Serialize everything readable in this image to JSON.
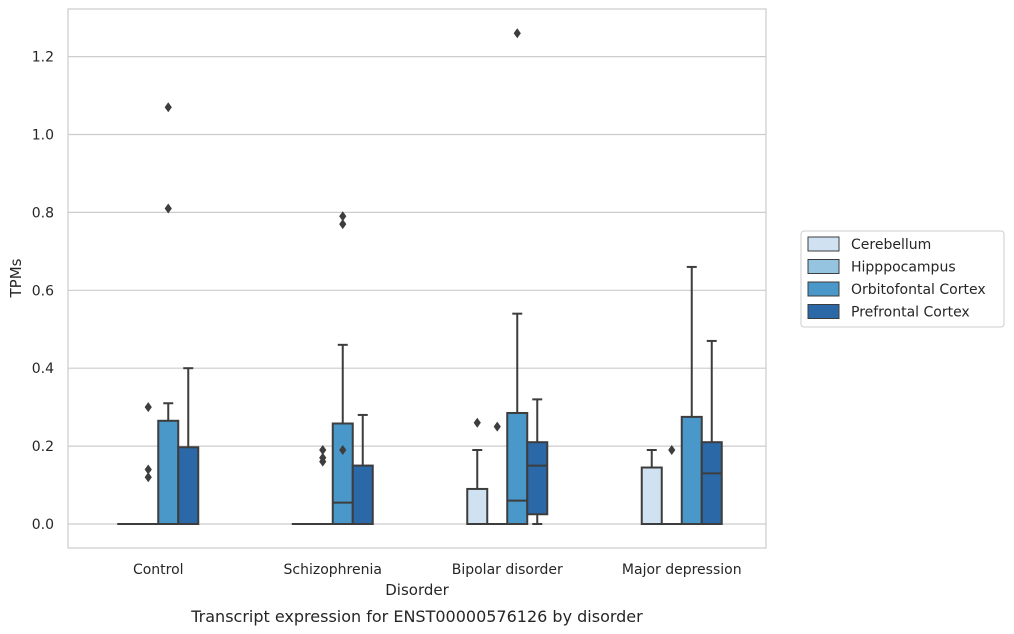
{
  "chart_data": {
    "type": "box",
    "caption": "Transcript expression for ENST00000576126 by disorder",
    "xlabel": "Disorder",
    "ylabel": "TPMs",
    "ylim": [
      -0.06,
      1.32
    ],
    "yticks": [
      0.0,
      0.2,
      0.4,
      0.6,
      0.8,
      1.0,
      1.2
    ],
    "ytick_labels": [
      "0.0",
      "0.2",
      "0.4",
      "0.6",
      "0.8",
      "1.0",
      "1.2"
    ],
    "grid": "horizontal",
    "legend_position": "right",
    "categories": [
      "Control",
      "Schizophrenia",
      "Bipolar disorder",
      "Major depression"
    ],
    "series": [
      {
        "name": "Cerebellum",
        "color": "#d0e1f2",
        "boxes": [
          {
            "min": 0,
            "q1": 0,
            "median": 0,
            "q3": 0,
            "max": 0,
            "outliers": []
          },
          {
            "min": 0,
            "q1": 0,
            "median": 0,
            "q3": 0,
            "max": 0,
            "outliers": []
          },
          {
            "min": 0,
            "q1": 0,
            "median": 0,
            "q3": 0.09,
            "max": 0.19,
            "outliers": [
              0.26
            ]
          },
          {
            "min": 0,
            "q1": 0,
            "median": 0,
            "q3": 0.145,
            "max": 0.19,
            "outliers": []
          }
        ]
      },
      {
        "name": "Hipppocampus",
        "color": "#94c4df",
        "boxes": [
          {
            "min": 0,
            "q1": 0,
            "median": 0,
            "q3": 0,
            "max": 0,
            "outliers": [
              0.12,
              0.14,
              0.3
            ]
          },
          {
            "min": 0,
            "q1": 0,
            "median": 0,
            "q3": 0,
            "max": 0,
            "outliers": [
              0.16,
              0.17,
              0.19
            ]
          },
          {
            "min": 0,
            "q1": 0,
            "median": 0,
            "q3": 0,
            "max": 0,
            "outliers": [
              0.25
            ]
          },
          {
            "min": 0,
            "q1": 0,
            "median": 0,
            "q3": 0,
            "max": 0,
            "outliers": [
              0.19
            ]
          }
        ]
      },
      {
        "name": "Orbitofontal Cortex",
        "color": "#4a98c9",
        "boxes": [
          {
            "min": 0,
            "q1": 0,
            "median": 0,
            "q3": 0.265,
            "max": 0.31,
            "outliers": [
              0.81,
              1.07
            ]
          },
          {
            "min": 0,
            "q1": 0,
            "median": 0.055,
            "q3": 0.258,
            "max": 0.46,
            "outliers": [
              0.19,
              0.77,
              0.79
            ]
          },
          {
            "min": 0,
            "q1": 0,
            "median": 0.06,
            "q3": 0.285,
            "max": 0.54,
            "outliers": [
              1.26
            ]
          },
          {
            "min": 0,
            "q1": 0,
            "median": 0,
            "q3": 0.275,
            "max": 0.66,
            "outliers": []
          }
        ]
      },
      {
        "name": "Prefrontal Cortex",
        "color": "#2a68a8",
        "boxes": [
          {
            "min": 0,
            "q1": 0,
            "median": 0,
            "q3": 0.197,
            "max": 0.4,
            "outliers": []
          },
          {
            "min": 0,
            "q1": 0,
            "median": 0,
            "q3": 0.15,
            "max": 0.28,
            "outliers": []
          },
          {
            "min": 0,
            "q1": 0.025,
            "median": 0.15,
            "q3": 0.21,
            "max": 0.32,
            "outliers": []
          },
          {
            "min": 0,
            "q1": 0,
            "median": 0.13,
            "q3": 0.21,
            "max": 0.47,
            "outliers": []
          }
        ]
      }
    ]
  }
}
